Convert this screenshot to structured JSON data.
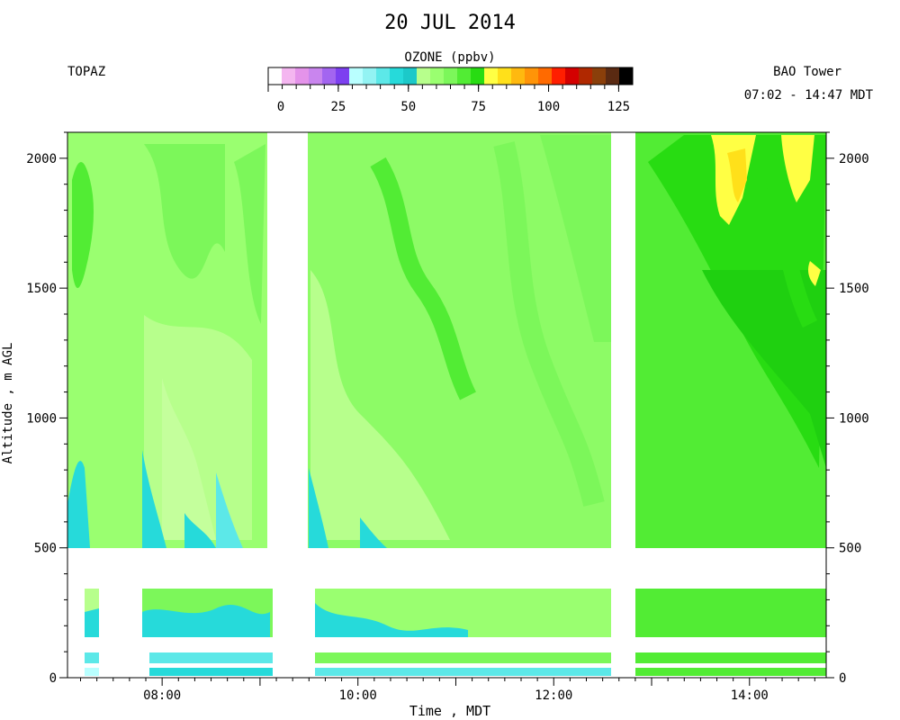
{
  "header": {
    "title": "20 JUL 2014",
    "site": "TOPAZ",
    "location": "BAO Tower",
    "time_range": "07:02 - 14:47 MDT"
  },
  "legend": {
    "title": "OZONE (ppbv)",
    "tick_labels": [
      "0",
      "25",
      "50",
      "75",
      "100",
      "125"
    ],
    "tick_values": [
      0,
      25,
      50,
      75,
      100,
      125
    ],
    "colors": [
      "#ffffff",
      "#f4b6f0",
      "#e493ea",
      "#c985ee",
      "#a365f0",
      "#7d40f0",
      "#b9ffff",
      "#93f3f3",
      "#5ce8e8",
      "#26dada",
      "#1cc9c9",
      "#b7ff8c",
      "#9aff70",
      "#7cf75a",
      "#52ec34",
      "#28dc12",
      "#ffff44",
      "#ffe01a",
      "#ffb90f",
      "#ff9408",
      "#ff6a00",
      "#ff1e00",
      "#d40000",
      "#b02800",
      "#8a3f0a",
      "#5a2a12",
      "#000000"
    ]
  },
  "axes": {
    "xlabel": "Time , MDT",
    "ylabel": "Altitude , m AGL",
    "x_ticks": [
      "08:00",
      "10:00",
      "12:00",
      "14:00"
    ],
    "y_ticks": [
      "0",
      "500",
      "1000",
      "1500",
      "2000"
    ]
  },
  "chart_data": {
    "type": "heatmap",
    "title": "20 JUL 2014",
    "xlabel": "Time , MDT",
    "ylabel": "Altitude , m AGL",
    "xlim": [
      "07:02",
      "14:47"
    ],
    "ylim": [
      0,
      2100
    ],
    "x_ticks": [
      "08:00",
      "10:00",
      "12:00",
      "14:00"
    ],
    "y_ticks": [
      0,
      500,
      1000,
      1500,
      2000
    ],
    "colorbar": {
      "label": "OZONE (ppbv)",
      "range": [
        0,
        130
      ],
      "ticks": [
        0,
        25,
        50,
        75,
        100,
        125
      ]
    },
    "data_gaps_time": [
      [
        "07:30",
        "08:00"
      ],
      [
        "09:00",
        "09:30"
      ],
      [
        "12:42",
        "12:55"
      ]
    ],
    "data_gaps_altitude_m": [
      [
        360,
        500
      ],
      [
        110,
        170
      ],
      [
        40,
        60
      ]
    ],
    "regions": [
      {
        "time": [
          "07:02",
          "09:00"
        ],
        "altitude_m": [
          500,
          2100
        ],
        "ozone_ppbv": 58
      },
      {
        "time": [
          "09:30",
          "12:42"
        ],
        "altitude_m": [
          500,
          2100
        ],
        "ozone_ppbv": 63
      },
      {
        "time": [
          "12:55",
          "14:47"
        ],
        "altitude_m": [
          500,
          2100
        ],
        "ozone_ppbv": 70
      },
      {
        "time": [
          "13:40",
          "14:25"
        ],
        "altitude_m": [
          1800,
          2100
        ],
        "ozone_ppbv": 78
      },
      {
        "time": [
          "07:02",
          "14:47"
        ],
        "altitude_m": [
          500,
          800
        ],
        "ozone_ppbv": 50
      },
      {
        "time": [
          "07:02",
          "14:47"
        ],
        "altitude_m": [
          0,
          360
        ],
        "ozone_ppbv": 55
      }
    ]
  }
}
